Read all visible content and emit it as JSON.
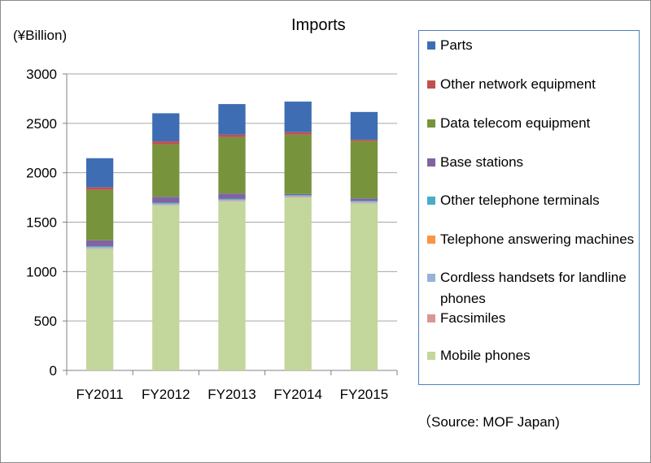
{
  "chart_data": {
    "type": "bar",
    "stacked": true,
    "title": "Imports",
    "unit_label": "(¥Billion)",
    "source": "（Source: MOF Japan)",
    "categories": [
      "FY2011",
      "FY2012",
      "FY2013",
      "FY2014",
      "FY2015"
    ],
    "ylim": [
      0,
      3000
    ],
    "yticks": [
      0,
      500,
      1000,
      1500,
      2000,
      2500,
      3000
    ],
    "grid": true,
    "legend_position": "right",
    "series": [
      {
        "name": "Mobile phones",
        "color": "#c3d69b",
        "values": [
          1230,
          1670,
          1710,
          1750,
          1690
        ]
      },
      {
        "name": "Facsimiles",
        "color": "#d99694",
        "values": [
          5,
          5,
          5,
          5,
          5
        ]
      },
      {
        "name": "Cordless handsets for landline phones",
        "color": "#95b3d7",
        "values": [
          10,
          10,
          10,
          10,
          10
        ]
      },
      {
        "name": "Telephone answering machines",
        "color": "#f79646",
        "values": [
          2,
          2,
          2,
          2,
          2
        ]
      },
      {
        "name": "Other telephone terminals",
        "color": "#4bacc6",
        "values": [
          10,
          10,
          8,
          8,
          8
        ]
      },
      {
        "name": "Base stations",
        "color": "#8064a2",
        "values": [
          60,
          60,
          55,
          10,
          25
        ]
      },
      {
        "name": "Data telecom equipment",
        "color": "#77933c",
        "values": [
          510,
          530,
          570,
          600,
          580
        ]
      },
      {
        "name": "Other network equipment",
        "color": "#c0504d",
        "values": [
          25,
          30,
          25,
          25,
          15
        ]
      },
      {
        "name": "Parts",
        "color": "#3e6db3",
        "values": [
          295,
          285,
          310,
          310,
          280
        ]
      }
    ]
  }
}
